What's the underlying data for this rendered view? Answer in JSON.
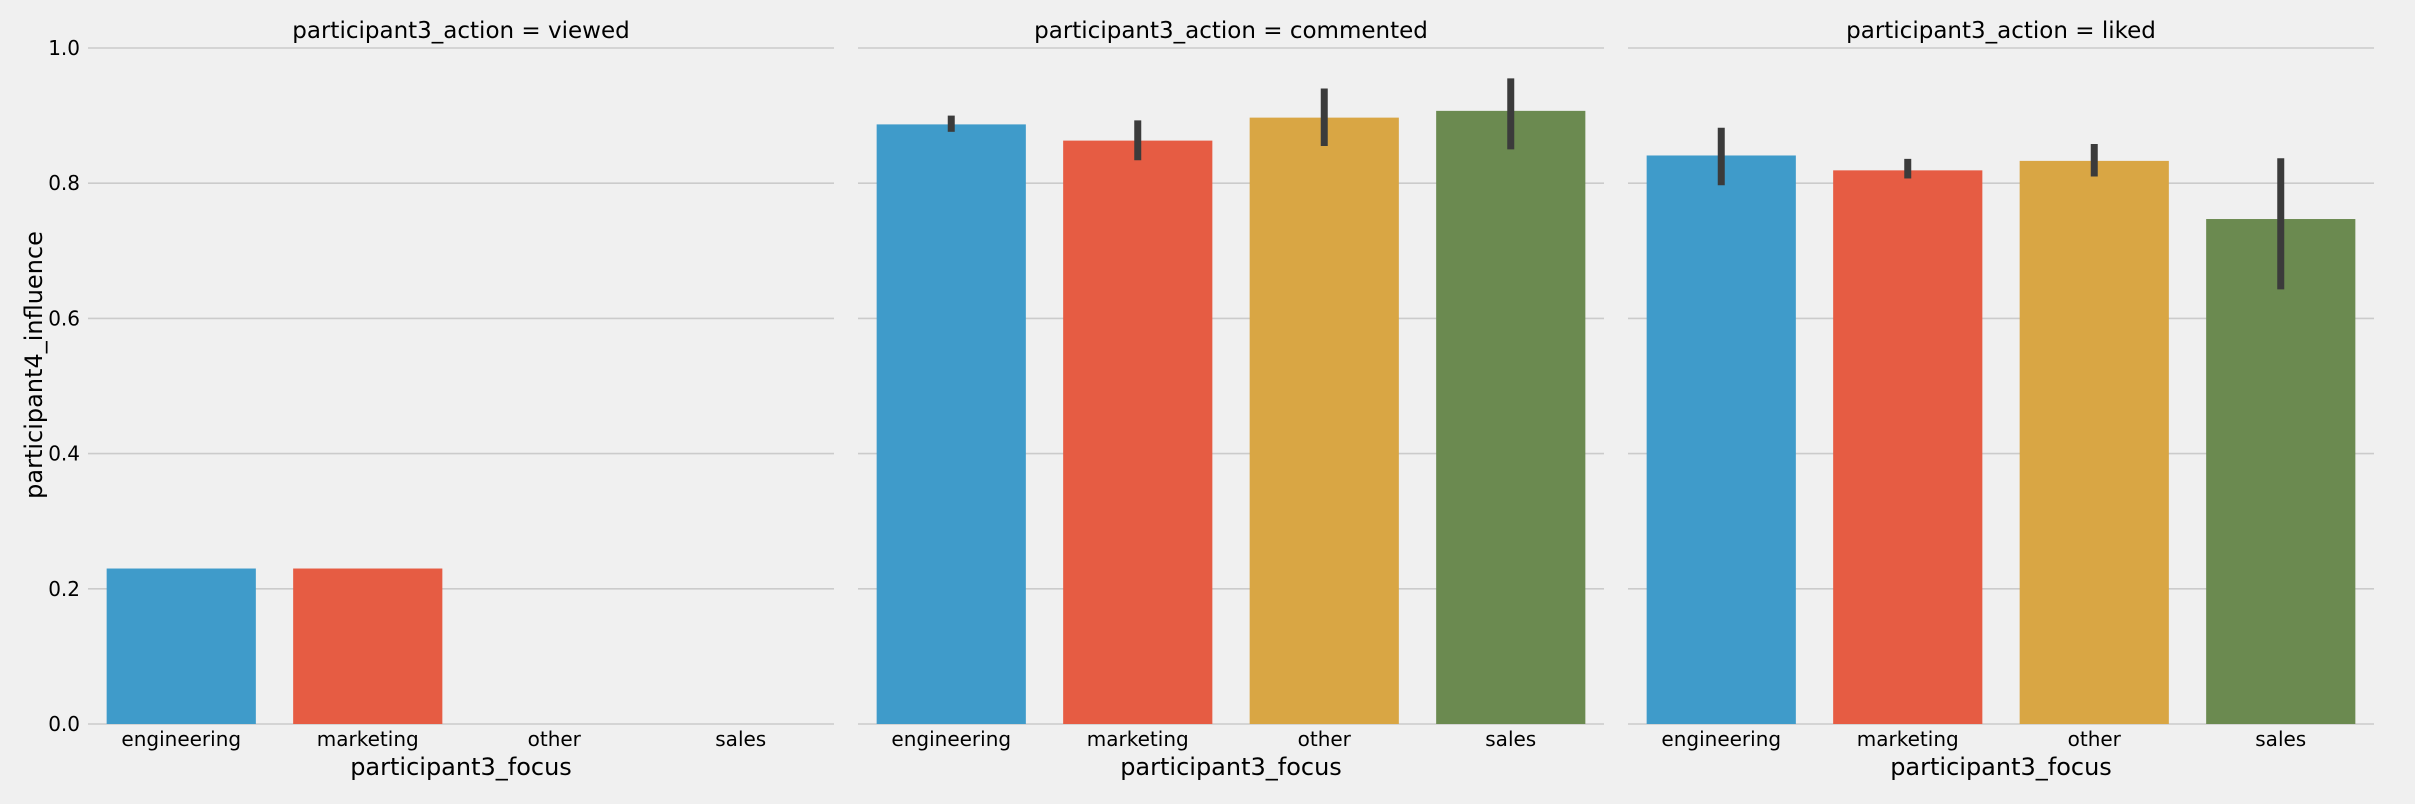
{
  "chart_data": {
    "type": "bar",
    "facet_variable": "participant3_action",
    "xlabel": "participant3_focus",
    "ylabel": "participant4_influence",
    "ylim": [
      0,
      1.0
    ],
    "yticks": [
      "0.0",
      "0.2",
      "0.4",
      "0.6",
      "0.8",
      "1.0"
    ],
    "grid": "horizontal",
    "categories": [
      "engineering",
      "marketing",
      "other",
      "sales"
    ],
    "category_colors": [
      "#3f9bca",
      "#e65c43",
      "#d9a644",
      "#6b8a50"
    ],
    "errorbar_color": "#3b3b3b",
    "panels": [
      {
        "title": "participant3_action = viewed",
        "values": [
          0.23,
          0.23,
          null,
          null
        ],
        "ci_low": [
          null,
          null,
          null,
          null
        ],
        "ci_high": [
          null,
          null,
          null,
          null
        ]
      },
      {
        "title": "participant3_action = commented",
        "values": [
          0.887,
          0.863,
          0.897,
          0.907
        ],
        "ci_low": [
          0.876,
          0.834,
          0.855,
          0.85
        ],
        "ci_high": [
          0.9,
          0.893,
          0.94,
          0.955
        ]
      },
      {
        "title": "participant3_action = liked",
        "values": [
          0.841,
          0.819,
          0.833,
          0.747
        ],
        "ci_low": [
          0.797,
          0.807,
          0.81,
          0.643
        ],
        "ci_high": [
          0.882,
          0.836,
          0.858,
          0.837
        ]
      }
    ]
  }
}
